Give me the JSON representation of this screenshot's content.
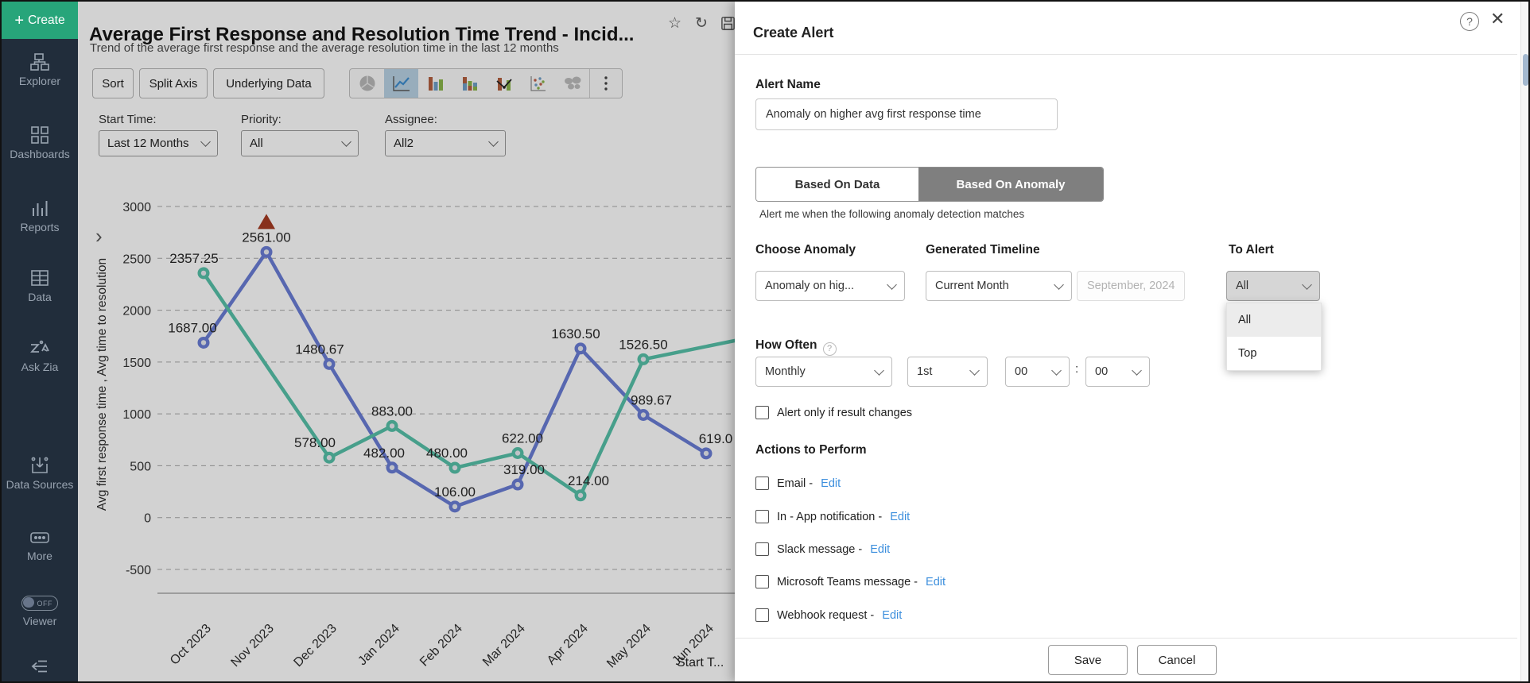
{
  "sidebar": {
    "create_label": "Create",
    "items": [
      {
        "label": "Explorer"
      },
      {
        "label": "Dashboards"
      },
      {
        "label": "Reports"
      },
      {
        "label": "Data"
      },
      {
        "label": "Ask Zia"
      },
      {
        "label": "Data Sources"
      },
      {
        "label": "More"
      }
    ],
    "viewer": {
      "label": "Viewer",
      "toggle_state": "OFF"
    }
  },
  "report": {
    "title": "Average First Response and Resolution Time Trend - Incid...",
    "subtitle": "Trend of the average first response and the average resolution time in the last 12 months",
    "toolbar": {
      "sort": "Sort",
      "split_axis": "Split Axis",
      "underlying_data": "Underlying Data",
      "chart_types": [
        "pie-chart",
        "line-chart",
        "bar-chart",
        "stacked-bar-chart",
        "combo-chart",
        "scatter-chart",
        "map-chart"
      ],
      "selected_chart_type": "line-chart"
    },
    "filters": [
      {
        "label": "Start Time:",
        "value": "Last 12 Months"
      },
      {
        "label": "Priority:",
        "value": "All"
      },
      {
        "label": "Assignee:",
        "value": "All2"
      }
    ]
  },
  "chart_data": {
    "type": "line",
    "categories": [
      "Oct 2023",
      "Nov 2023",
      "Dec 2023",
      "Jan 2024",
      "Feb 2024",
      "Mar 2024",
      "Apr 2024",
      "May 2024",
      "Jun 2024"
    ],
    "series": [
      {
        "name": "Avg first response time",
        "color": "#6a7ed6",
        "values": [
          1687,
          2561,
          1480.67,
          482,
          106,
          319,
          1630.5,
          989.67,
          619
        ],
        "labels": [
          "1687.00",
          "2561.00",
          "1480.67",
          "482.00",
          "106.00",
          "319.00",
          "1630.50",
          "989.67",
          "619.0"
        ],
        "label_dx": [
          -14,
          0,
          -12,
          -10,
          0,
          8,
          -6,
          10,
          12
        ],
        "anomaly_index": 1
      },
      {
        "name": "Avg time to resolution",
        "color": "#57c1a9",
        "values": [
          2357.25,
          null,
          578,
          883,
          480,
          622,
          214,
          1526.5,
          null
        ],
        "labels": [
          "2357.25",
          null,
          "578.00",
          "883.00",
          "480.00",
          "622.00",
          "214.00",
          "1526.50",
          null
        ],
        "label_dx": [
          -12,
          0,
          -18,
          0,
          -10,
          6,
          10,
          0,
          0
        ],
        "extend_to": 1650
      }
    ],
    "ylabel": "Avg first response time , Avg time to resolution",
    "xlabel": "Start T...",
    "yticks": [
      3000,
      2500,
      2000,
      1500,
      1000,
      500,
      0,
      -500
    ],
    "ylim": [
      -500,
      3000
    ],
    "grid": "dashed horizontal",
    "legend_position": "none",
    "anomaly_marker_color": "#a63b22"
  },
  "modal": {
    "title": "Create Alert",
    "alert_name": {
      "label": "Alert Name",
      "value": "Anomaly on higher avg first response time"
    },
    "tabs": [
      {
        "label": "Based On Data",
        "active": false
      },
      {
        "label": "Based On Anomaly",
        "active": true
      }
    ],
    "caption": "Alert me when the following anomaly detection matches",
    "choose_anomaly": {
      "label": "Choose Anomaly",
      "value": "Anomaly on hig..."
    },
    "generated_timeline": {
      "label": "Generated Timeline",
      "value": "Current Month",
      "date_value": "September, 2024"
    },
    "to_alert": {
      "label": "To Alert",
      "value": "All",
      "options": [
        "All",
        "Top"
      ],
      "highlighted_option": "All"
    },
    "how_often": {
      "label": "How Often",
      "frequency": "Monthly",
      "day": "1st",
      "hour": "00",
      "separator": ":",
      "minute": "00"
    },
    "result_changes_checkbox": {
      "label": "Alert only if result changes",
      "checked": false
    },
    "actions": {
      "label": "Actions to Perform",
      "items": [
        {
          "label": "Email - ",
          "link": "Edit",
          "checked": false
        },
        {
          "label": "In - App notification - ",
          "link": "Edit",
          "checked": false
        },
        {
          "label": "Slack message - ",
          "link": "Edit",
          "checked": false
        },
        {
          "label": "Microsoft Teams message - ",
          "link": "Edit",
          "checked": false
        },
        {
          "label": "Webhook request - ",
          "link": "Edit",
          "checked": false
        }
      ]
    },
    "footer": {
      "save": "Save",
      "cancel": "Cancel"
    },
    "accent_link_color": "#3d8fdd",
    "active_tab_bg": "#7f7f7f"
  }
}
